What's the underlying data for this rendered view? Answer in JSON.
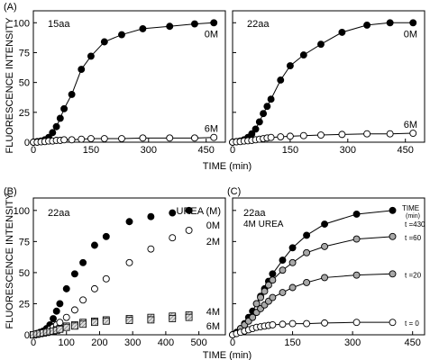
{
  "figure": {
    "y_axis_label": "FLUORESCENCE INTENSITY",
    "x_axis_label": "TIME (min)"
  },
  "chart_data": [
    {
      "panel_label": "(A)",
      "type": "scatter",
      "inset_title": "15aa",
      "xlim": [
        0,
        500
      ],
      "ylim": [
        0,
        110
      ],
      "x_ticks": [
        "0",
        "150",
        "300",
        "450"
      ],
      "y_ticks": [
        "0",
        "25",
        "50",
        "75",
        "100"
      ],
      "series": [
        {
          "name": "0M",
          "marker": "filled",
          "fit_line": true,
          "x": [
            0,
            10,
            20,
            30,
            40,
            50,
            60,
            70,
            80,
            100,
            125,
            150,
            185,
            230,
            285,
            355,
            420,
            470
          ],
          "y": [
            0,
            0.5,
            1,
            2,
            4,
            8,
            13,
            20,
            28,
            40,
            61,
            72,
            84,
            90,
            95,
            97,
            99,
            100
          ]
        },
        {
          "name": "6M",
          "marker": "open",
          "fit_line": true,
          "x": [
            0,
            10,
            20,
            30,
            40,
            50,
            60,
            70,
            80,
            100,
            125,
            150,
            185,
            230,
            285,
            355,
            420,
            470
          ],
          "y": [
            0,
            0,
            0.3,
            0.5,
            1,
            1,
            1.5,
            1.5,
            2,
            2,
            2.5,
            3,
            3,
            3,
            3.5,
            3.5,
            3.5,
            4
          ]
        }
      ]
    },
    {
      "panel_label": "",
      "type": "scatter",
      "inset_title": "22aa",
      "xlim": [
        0,
        500
      ],
      "ylim": [
        0,
        110
      ],
      "x_ticks": [
        "0",
        "150",
        "300",
        "450"
      ],
      "y_ticks": [],
      "series": [
        {
          "name": "0M",
          "marker": "filled",
          "fit_line": true,
          "x": [
            0,
            10,
            20,
            30,
            40,
            50,
            60,
            70,
            80,
            90,
            100,
            125,
            150,
            185,
            230,
            285,
            350,
            410,
            470
          ],
          "y": [
            0,
            0.5,
            1,
            2,
            4,
            7,
            11,
            17,
            24,
            30,
            36,
            52,
            64,
            73,
            82,
            92,
            98,
            100,
            100
          ]
        },
        {
          "name": "6M",
          "marker": "open",
          "fit_line": true,
          "x": [
            0,
            10,
            20,
            30,
            40,
            50,
            60,
            70,
            80,
            90,
            100,
            125,
            150,
            185,
            230,
            285,
            350,
            410,
            470
          ],
          "y": [
            0,
            0.3,
            0.5,
            1,
            1.2,
            1.5,
            2,
            2.5,
            3,
            3.5,
            4,
            4.5,
            5,
            5.5,
            6,
            6.5,
            7,
            7,
            7.5
          ]
        }
      ]
    },
    {
      "panel_label": "(B)",
      "type": "scatter",
      "inset_title": "22aa",
      "legend_title": "UREA (M)",
      "xlim": [
        0,
        580
      ],
      "ylim": [
        0,
        110
      ],
      "x_ticks": [
        "0",
        "100",
        "200",
        "300",
        "400",
        "500"
      ],
      "y_ticks": [
        "0",
        "25",
        "50",
        "75",
        "100"
      ],
      "series": [
        {
          "name": "0M",
          "marker": "filled",
          "x": [
            0,
            10,
            20,
            30,
            40,
            50,
            60,
            70,
            80,
            100,
            125,
            150,
            185,
            220,
            290,
            355,
            420,
            470
          ],
          "y": [
            0,
            1,
            2,
            3,
            5,
            8,
            13,
            19,
            25,
            37,
            49,
            58,
            72,
            79,
            91,
            95,
            98,
            100
          ]
        },
        {
          "name": "2M",
          "marker": "open",
          "x": [
            0,
            10,
            20,
            30,
            40,
            50,
            60,
            70,
            80,
            100,
            125,
            150,
            185,
            220,
            290,
            355,
            420,
            470
          ],
          "y": [
            0,
            0.5,
            1,
            2,
            3,
            4.5,
            6,
            8,
            10,
            14,
            20,
            28,
            37,
            45,
            58,
            69,
            78,
            84
          ]
        },
        {
          "name": "4M",
          "marker": "hatched",
          "x": [
            0,
            10,
            20,
            30,
            40,
            50,
            60,
            70,
            80,
            100,
            125,
            150,
            185,
            220,
            290,
            355,
            420,
            470
          ],
          "y": [
            0,
            0.5,
            1,
            1.5,
            2,
            2.5,
            3,
            4,
            5,
            7,
            8,
            10,
            11,
            12,
            13,
            14,
            15,
            16
          ]
        },
        {
          "name": "6M",
          "marker": "hatched",
          "x": [
            0,
            10,
            20,
            30,
            40,
            50,
            60,
            70,
            80,
            100,
            125,
            150,
            185,
            220,
            290,
            355,
            420,
            470
          ],
          "y": [
            0,
            0.5,
            1,
            1.5,
            2,
            2.5,
            3,
            3.5,
            4.5,
            6,
            7,
            8.5,
            10,
            11,
            11.5,
            12,
            13,
            14
          ]
        }
      ]
    },
    {
      "panel_label": "(C)",
      "type": "scatter",
      "inset_title": "22aa",
      "inset_subtitle": "4M UREA",
      "legend_title": "TIME",
      "legend_unit": "(min)",
      "xlim": [
        0,
        480
      ],
      "ylim": [
        0,
        110
      ],
      "x_ticks": [
        "0",
        "150",
        "300",
        "450"
      ],
      "y_ticks": [],
      "series": [
        {
          "name": "t =430",
          "marker": "filled",
          "fit_line": true,
          "x": [
            0,
            10,
            20,
            30,
            40,
            50,
            60,
            70,
            80,
            90,
            100,
            125,
            150,
            185,
            230,
            310,
            400
          ],
          "y": [
            0,
            2,
            5,
            9,
            14,
            19,
            25,
            31,
            37,
            43,
            49,
            60,
            70,
            80,
            89,
            97,
            100
          ]
        },
        {
          "name": "t =60",
          "marker": "gray",
          "fit_line": true,
          "x": [
            60,
            70,
            80,
            90,
            100,
            125,
            150,
            185,
            230,
            310,
            400
          ],
          "y": [
            25,
            30,
            35,
            40,
            44,
            52,
            58,
            66,
            71,
            77,
            79
          ]
        },
        {
          "name": "t =20",
          "marker": "gray",
          "fit_line": true,
          "x": [
            20,
            30,
            40,
            50,
            60,
            70,
            80,
            90,
            100,
            125,
            150,
            185,
            230,
            310,
            400
          ],
          "y": [
            5,
            8,
            11,
            14,
            18,
            21,
            24,
            27,
            30,
            34,
            38,
            42,
            46,
            48,
            49
          ]
        },
        {
          "name": "t = 0",
          "marker": "open",
          "fit_line": true,
          "x": [
            0,
            10,
            20,
            30,
            40,
            50,
            60,
            70,
            80,
            90,
            100,
            125,
            150,
            185,
            230,
            310,
            400
          ],
          "y": [
            0,
            1,
            2,
            3,
            4,
            5,
            6,
            6.5,
            7,
            7.5,
            8,
            8.5,
            9,
            9,
            9.5,
            10,
            10
          ]
        }
      ]
    }
  ]
}
